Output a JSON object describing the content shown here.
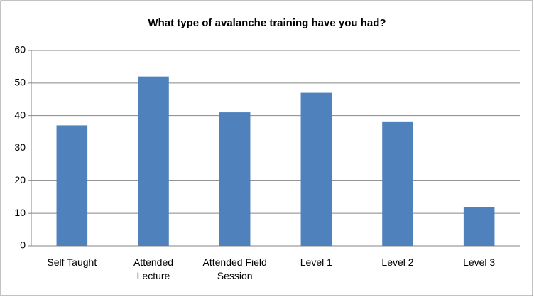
{
  "chart_data": {
    "type": "bar",
    "title": "What type of avalanche training have you had?",
    "categories": [
      "Self Taught",
      "Attended Lecture",
      "Attended Field Session",
      "Level 1",
      "Level 2",
      "Level 3"
    ],
    "values": [
      37,
      52,
      41,
      47,
      38,
      12
    ],
    "color": "#4f81bd",
    "ylim": [
      0,
      60
    ],
    "yticks": [
      0,
      10,
      20,
      30,
      40,
      50,
      60
    ],
    "grid": true
  }
}
